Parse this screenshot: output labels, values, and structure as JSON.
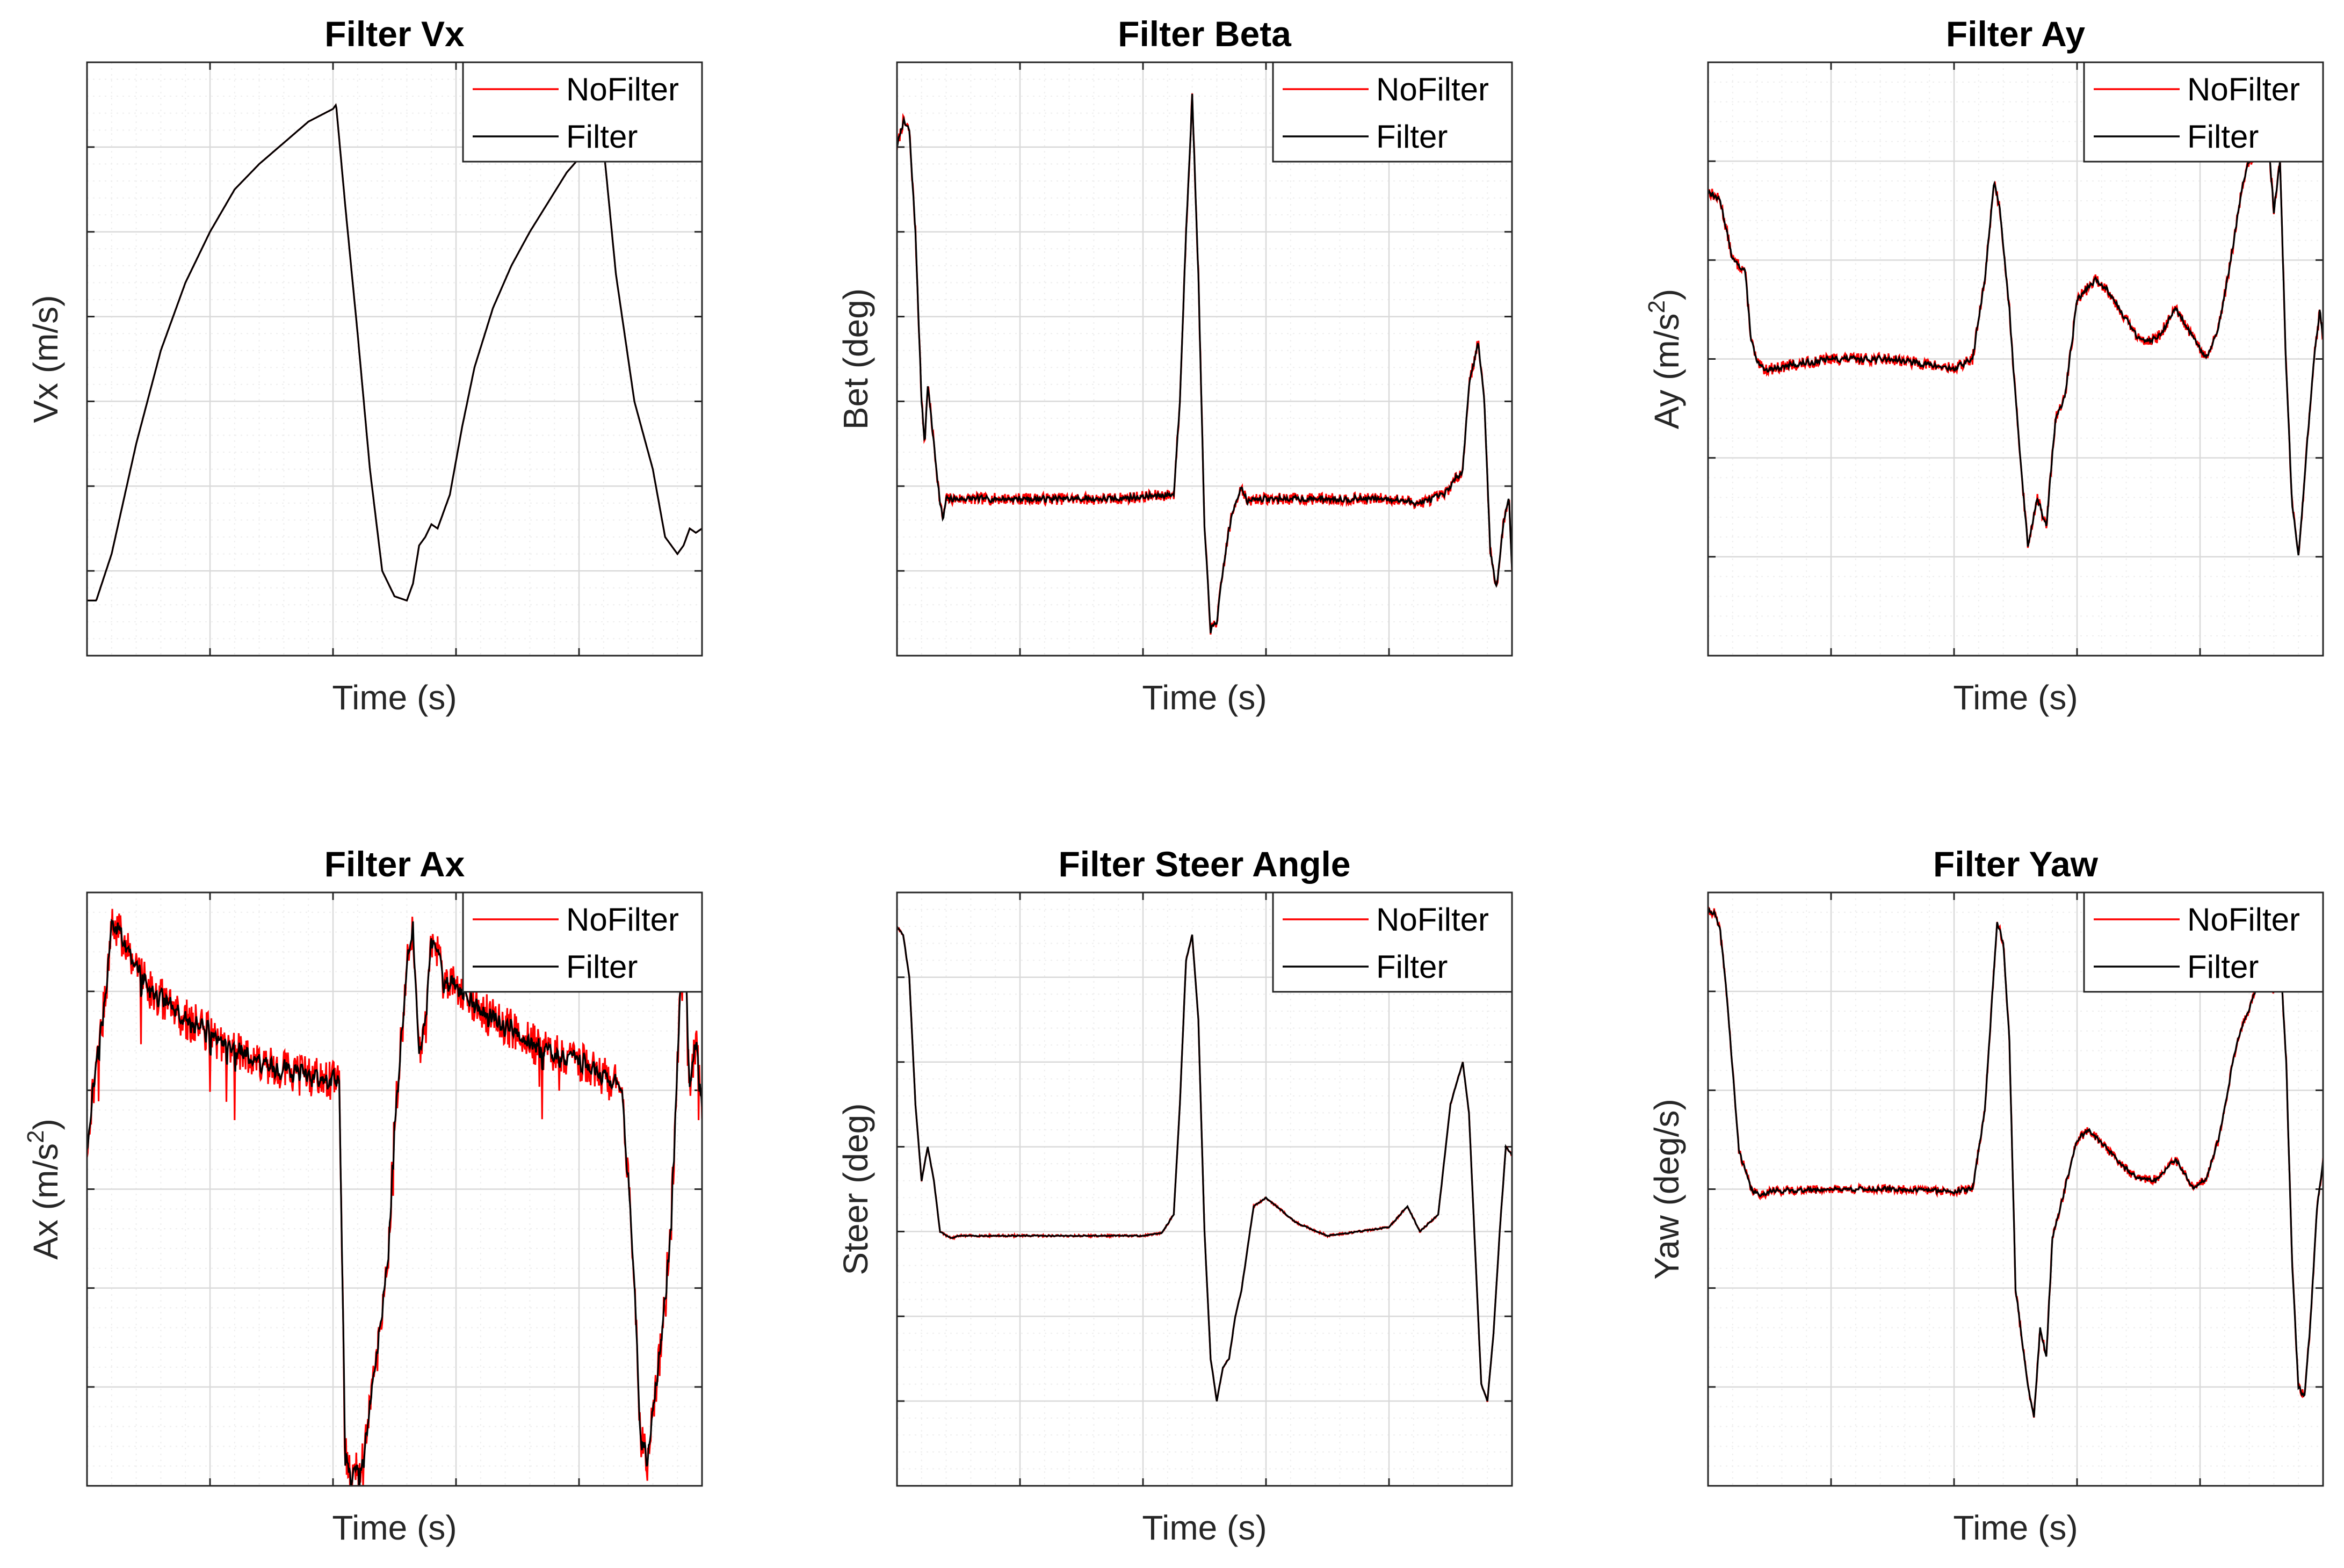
{
  "figure": {
    "rows": 2,
    "cols": 3
  },
  "colors": {
    "nofilter": "#ff0000",
    "filter": "#000000",
    "axis": "#262626",
    "grid_major": "#d9d9d9",
    "grid_minor": "#eeeeee"
  },
  "chart_data": [
    {
      "type": "line",
      "title": "Filter Vx",
      "xlabel": "Time (s)",
      "ylabel": "Vx (m/s)",
      "ylabel_sup": "",
      "ylabel_tail": "",
      "xlim": [
        0,
        10
      ],
      "ylim": [
        0,
        7
      ],
      "x_major": 5,
      "x_minor": 5,
      "y_major": 7,
      "y_minor": 5,
      "legend": {
        "location": "top-right",
        "entries": [
          "NoFilter",
          "Filter"
        ]
      },
      "noise": 0.0,
      "seed": 1,
      "x": [
        0,
        0.15,
        0.4,
        0.8,
        1.2,
        1.6,
        2,
        2.4,
        2.8,
        3.2,
        3.6,
        4,
        4.05,
        4.2,
        4.4,
        4.6,
        4.8,
        5,
        5.2,
        5.3,
        5.4,
        5.5,
        5.6,
        5.7,
        5.8,
        5.9,
        6,
        6.1,
        6.3,
        6.6,
        6.9,
        7.2,
        7.5,
        7.8,
        8.1,
        8.4,
        8.6,
        8.9,
        9.2,
        9.4,
        9.5,
        9.6,
        9.7,
        9.8,
        9.9,
        10
      ],
      "series": [
        {
          "name": "NoFilter",
          "values": [
            0.65,
            0.65,
            1.2,
            2.5,
            3.6,
            4.4,
            5.0,
            5.5,
            5.8,
            6.05,
            6.3,
            6.45,
            6.5,
            5.3,
            3.8,
            2.2,
            1.0,
            0.7,
            0.65,
            0.85,
            1.3,
            1.4,
            1.55,
            1.5,
            1.7,
            1.9,
            2.3,
            2.7,
            3.4,
            4.1,
            4.6,
            5.0,
            5.35,
            5.7,
            5.95,
            6.0,
            4.5,
            3.0,
            2.2,
            1.4,
            1.3,
            1.2,
            1.3,
            1.5,
            1.45,
            1.5
          ]
        },
        {
          "name": "Filter",
          "values": [
            0.65,
            0.65,
            1.2,
            2.5,
            3.6,
            4.4,
            5.0,
            5.5,
            5.8,
            6.05,
            6.3,
            6.45,
            6.5,
            5.3,
            3.8,
            2.2,
            1.0,
            0.7,
            0.65,
            0.85,
            1.3,
            1.4,
            1.55,
            1.5,
            1.7,
            1.9,
            2.3,
            2.7,
            3.4,
            4.1,
            4.6,
            5.0,
            5.35,
            5.7,
            5.95,
            6.0,
            4.5,
            3.0,
            2.2,
            1.4,
            1.3,
            1.2,
            1.3,
            1.5,
            1.45,
            1.5
          ]
        }
      ]
    },
    {
      "type": "line",
      "title": "Filter Beta",
      "xlabel": "Time (s)",
      "ylabel": "Bet (deg)",
      "ylabel_sup": "",
      "ylabel_tail": "",
      "xlim": [
        0,
        10
      ],
      "ylim": [
        0,
        7
      ],
      "x_major": 5,
      "x_minor": 5,
      "y_major": 7,
      "y_minor": 5,
      "legend": {
        "location": "top-right",
        "entries": [
          "NoFilter",
          "Filter"
        ]
      },
      "noise": 0.07,
      "seed": 7,
      "x": [
        0,
        0.1,
        0.2,
        0.3,
        0.4,
        0.45,
        0.5,
        0.6,
        0.7,
        0.75,
        0.8,
        1.0,
        2.0,
        3.0,
        3.5,
        4.5,
        4.6,
        4.7,
        4.8,
        4.9,
        5.0,
        5.1,
        5.2,
        5.3,
        5.4,
        5.5,
        5.6,
        5.7,
        5.8,
        6.0,
        6.5,
        7.0,
        7.5,
        8.0,
        8.5,
        8.9,
        9.2,
        9.3,
        9.45,
        9.55,
        9.65,
        9.75,
        9.85,
        9.95,
        10
      ],
      "series": [
        {
          "name": "NoFilter",
          "values": [
            6.0,
            6.3,
            6.2,
            5.0,
            3.0,
            2.5,
            3.2,
            2.5,
            1.8,
            1.6,
            1.85,
            1.85,
            1.85,
            1.85,
            1.85,
            1.9,
            3.0,
            5.0,
            6.6,
            4.5,
            1.5,
            0.3,
            0.4,
            1.0,
            1.5,
            1.8,
            2.0,
            1.8,
            1.85,
            1.85,
            1.85,
            1.85,
            1.85,
            1.85,
            1.8,
            1.9,
            2.2,
            3.2,
            3.7,
            3.0,
            1.2,
            0.8,
            1.5,
            1.9,
            1.0
          ]
        },
        {
          "name": "Filter",
          "values": [
            6.0,
            6.3,
            6.2,
            5.0,
            3.0,
            2.5,
            3.2,
            2.5,
            1.8,
            1.6,
            1.85,
            1.85,
            1.85,
            1.85,
            1.85,
            1.9,
            3.0,
            5.0,
            6.6,
            4.5,
            1.5,
            0.3,
            0.4,
            1.0,
            1.5,
            1.8,
            2.0,
            1.8,
            1.85,
            1.85,
            1.85,
            1.85,
            1.85,
            1.85,
            1.8,
            1.9,
            2.2,
            3.2,
            3.7,
            3.0,
            1.2,
            0.8,
            1.5,
            1.9,
            1.0
          ]
        }
      ]
    },
    {
      "type": "line",
      "title": "Filter Ay",
      "xlabel": "Time (s)",
      "ylabel": "Ay (m/s",
      "ylabel_sup": "2",
      "ylabel_tail": ")",
      "xlim": [
        0,
        10
      ],
      "ylim": [
        0,
        6
      ],
      "x_major": 5,
      "x_minor": 5,
      "y_major": 6,
      "y_minor": 5,
      "legend": {
        "location": "top-right",
        "entries": [
          "NoFilter",
          "Filter"
        ]
      },
      "noise": 0.06,
      "seed": 13,
      "x": [
        0,
        0.2,
        0.4,
        0.6,
        0.7,
        0.8,
        0.9,
        1.0,
        1.5,
        2.0,
        3.0,
        3.5,
        4.0,
        4.3,
        4.5,
        4.65,
        4.75,
        4.9,
        5.0,
        5.2,
        5.35,
        5.5,
        5.65,
        5.8,
        6.0,
        6.3,
        6.5,
        6.8,
        7.0,
        7.3,
        7.6,
        7.9,
        8.1,
        8.3,
        8.5,
        8.7,
        8.8,
        9.0,
        9.1,
        9.2,
        9.3,
        9.4,
        9.5,
        9.6,
        9.7,
        9.75,
        9.85,
        9.95,
        10
      ],
      "series": [
        {
          "name": "NoFilter",
          "values": [
            4.7,
            4.6,
            4.0,
            3.9,
            3.2,
            2.95,
            2.9,
            2.9,
            2.95,
            3.0,
            3.0,
            2.95,
            2.9,
            3.0,
            3.8,
            4.8,
            4.5,
            3.5,
            2.6,
            1.1,
            1.6,
            1.3,
            2.4,
            2.6,
            3.6,
            3.8,
            3.7,
            3.4,
            3.2,
            3.2,
            3.5,
            3.2,
            3.0,
            3.3,
            4.0,
            4.8,
            5.0,
            5.1,
            5.3,
            4.5,
            5.0,
            2.9,
            1.5,
            1.0,
            1.8,
            2.2,
            3.0,
            3.5,
            3.2
          ]
        },
        {
          "name": "Filter",
          "values": [
            4.7,
            4.6,
            4.0,
            3.9,
            3.2,
            2.95,
            2.9,
            2.9,
            2.95,
            3.0,
            3.0,
            2.95,
            2.9,
            3.0,
            3.8,
            4.8,
            4.5,
            3.5,
            2.6,
            1.1,
            1.6,
            1.3,
            2.4,
            2.6,
            3.6,
            3.8,
            3.7,
            3.4,
            3.2,
            3.2,
            3.5,
            3.2,
            3.0,
            3.3,
            4.0,
            4.8,
            5.0,
            5.1,
            5.3,
            4.5,
            5.0,
            2.9,
            1.5,
            1.0,
            1.8,
            2.2,
            3.0,
            3.5,
            3.2
          ]
        }
      ]
    },
    {
      "type": "line",
      "title": "Filter Ax",
      "xlabel": "Time (s)",
      "ylabel": "Ax (m/s",
      "ylabel_sup": "2",
      "ylabel_tail": ")",
      "xlim": [
        0,
        10
      ],
      "ylim": [
        0,
        6.3
      ],
      "x_major": 5,
      "x_minor": 5,
      "y_major": 6,
      "y_minor": 5,
      "legend": {
        "location": "top-right",
        "entries": [
          "NoFilter",
          "Filter"
        ]
      },
      "noise": 0.22,
      "seed": 21,
      "x": [
        0,
        0.15,
        0.3,
        0.4,
        0.6,
        0.8,
        1.0,
        1.5,
        2.0,
        2.5,
        3.0,
        3.5,
        4.0,
        4.1,
        4.2,
        4.3,
        4.5,
        4.7,
        4.9,
        5.0,
        5.2,
        5.3,
        5.4,
        5.5,
        5.6,
        5.7,
        5.8,
        6.0,
        6.5,
        7.0,
        7.5,
        8.0,
        8.5,
        8.7,
        8.9,
        9.0,
        9.1,
        9.2,
        9.3,
        9.5,
        9.6,
        9.7,
        9.8,
        9.9,
        10
      ],
      "series": [
        {
          "name": "NoFilter",
          "values": [
            3.6,
            4.5,
            5.2,
            6.0,
            5.8,
            5.5,
            5.3,
            5.0,
            4.8,
            4.6,
            4.45,
            4.35,
            4.3,
            4.25,
            0.4,
            0.1,
            0.3,
            1.3,
            2.5,
            3.8,
            5.5,
            6.0,
            4.5,
            5.0,
            5.8,
            5.7,
            5.3,
            5.3,
            5.0,
            4.8,
            4.6,
            4.5,
            4.3,
            4.2,
            2.2,
            0.5,
            0.3,
            0.8,
            1.3,
            2.8,
            4.5,
            6.0,
            4.3,
            4.7,
            4.0
          ]
        },
        {
          "name": "Filter",
          "values": [
            3.6,
            4.5,
            5.2,
            6.0,
            5.8,
            5.5,
            5.3,
            5.0,
            4.8,
            4.6,
            4.45,
            4.35,
            4.3,
            4.25,
            0.4,
            0.1,
            0.3,
            1.3,
            2.5,
            3.8,
            5.5,
            6.0,
            4.5,
            5.0,
            5.8,
            5.7,
            5.3,
            5.3,
            5.0,
            4.8,
            4.6,
            4.5,
            4.3,
            4.2,
            2.2,
            0.5,
            0.3,
            0.8,
            1.3,
            2.8,
            4.5,
            6.0,
            4.3,
            4.7,
            4.0
          ]
        }
      ]
    },
    {
      "type": "line",
      "title": "Filter Steer Angle",
      "xlabel": "Time (s)",
      "ylabel": "Steer (deg)",
      "ylabel_sup": "",
      "ylabel_tail": "",
      "xlim": [
        0,
        10
      ],
      "ylim": [
        0,
        7
      ],
      "x_major": 5,
      "x_minor": 5,
      "y_major": 7,
      "y_minor": 5,
      "legend": {
        "location": "top-right",
        "entries": [
          "NoFilter",
          "Filter"
        ]
      },
      "noise": 0.012,
      "seed": 31,
      "x": [
        0,
        0.1,
        0.2,
        0.3,
        0.4,
        0.5,
        0.6,
        0.7,
        0.8,
        0.9,
        1.0,
        2.0,
        3.0,
        4.0,
        4.3,
        4.5,
        4.6,
        4.7,
        4.8,
        4.9,
        5.0,
        5.1,
        5.2,
        5.3,
        5.4,
        5.5,
        5.6,
        5.8,
        6.0,
        6.5,
        7.0,
        7.5,
        8.0,
        8.3,
        8.5,
        8.8,
        9.0,
        9.2,
        9.3,
        9.4,
        9.5,
        9.6,
        9.7,
        9.8,
        9.9,
        10
      ],
      "series": [
        {
          "name": "NoFilter",
          "values": [
            6.6,
            6.5,
            6.0,
            4.5,
            3.6,
            4.0,
            3.6,
            3.0,
            2.95,
            2.92,
            2.95,
            2.95,
            2.95,
            2.95,
            2.98,
            3.2,
            4.5,
            6.2,
            6.5,
            5.5,
            3.0,
            1.5,
            1.0,
            1.4,
            1.5,
            2.0,
            2.3,
            3.3,
            3.4,
            3.1,
            2.95,
            3.0,
            3.05,
            3.3,
            3.0,
            3.2,
            4.5,
            5.0,
            4.4,
            2.8,
            1.2,
            1.0,
            1.8,
            3.0,
            4.0,
            3.9
          ]
        },
        {
          "name": "Filter",
          "values": [
            6.6,
            6.5,
            6.0,
            4.5,
            3.6,
            4.0,
            3.6,
            3.0,
            2.95,
            2.92,
            2.95,
            2.95,
            2.95,
            2.95,
            2.98,
            3.2,
            4.5,
            6.2,
            6.5,
            5.5,
            3.0,
            1.5,
            1.0,
            1.4,
            1.5,
            2.0,
            2.3,
            3.3,
            3.4,
            3.1,
            2.95,
            3.0,
            3.05,
            3.3,
            3.0,
            3.2,
            4.5,
            5.0,
            4.4,
            2.8,
            1.2,
            1.0,
            1.8,
            3.0,
            4.0,
            3.9
          ]
        }
      ]
    },
    {
      "type": "line",
      "title": "Filter Yaw",
      "xlabel": "Time (s)",
      "ylabel": "Yaw (deg/s)",
      "ylabel_sup": "",
      "ylabel_tail": "",
      "xlim": [
        0,
        10
      ],
      "ylim": [
        0,
        6
      ],
      "x_major": 5,
      "x_minor": 5,
      "y_major": 6,
      "y_minor": 5,
      "legend": {
        "location": "top-right",
        "entries": [
          "NoFilter",
          "Filter"
        ]
      },
      "noise": 0.045,
      "seed": 41,
      "x": [
        0,
        0.1,
        0.2,
        0.3,
        0.4,
        0.5,
        0.6,
        0.7,
        0.8,
        0.9,
        1.0,
        2.0,
        3.0,
        4.0,
        4.3,
        4.5,
        4.7,
        4.8,
        4.9,
        5.0,
        5.2,
        5.3,
        5.4,
        5.5,
        5.6,
        5.8,
        6.0,
        6.2,
        6.5,
        6.8,
        7.0,
        7.3,
        7.6,
        7.9,
        8.1,
        8.3,
        8.6,
        8.9,
        9.1,
        9.2,
        9.3,
        9.4,
        9.5,
        9.6,
        9.7,
        9.8,
        9.9,
        10
      ],
      "series": [
        {
          "name": "NoFilter",
          "values": [
            5.8,
            5.8,
            5.6,
            5.0,
            4.2,
            3.4,
            3.2,
            3.0,
            2.95,
            2.95,
            2.98,
            3.0,
            3.0,
            2.98,
            3.0,
            3.8,
            5.7,
            5.5,
            4.5,
            2.0,
            1.0,
            0.7,
            1.6,
            1.3,
            2.5,
            3.0,
            3.5,
            3.6,
            3.4,
            3.2,
            3.1,
            3.1,
            3.3,
            3.0,
            3.1,
            3.5,
            4.5,
            5.0,
            5.2,
            5.0,
            5.4,
            4.3,
            2.2,
            1.0,
            0.9,
            1.7,
            2.8,
            3.3
          ]
        },
        {
          "name": "Filter",
          "values": [
            5.8,
            5.8,
            5.6,
            5.0,
            4.2,
            3.4,
            3.2,
            3.0,
            2.95,
            2.95,
            2.98,
            3.0,
            3.0,
            2.98,
            3.0,
            3.8,
            5.7,
            5.5,
            4.5,
            2.0,
            1.0,
            0.7,
            1.6,
            1.3,
            2.5,
            3.0,
            3.5,
            3.6,
            3.4,
            3.2,
            3.1,
            3.1,
            3.3,
            3.0,
            3.1,
            3.5,
            4.5,
            5.0,
            5.2,
            5.0,
            5.4,
            4.3,
            2.2,
            1.0,
            0.9,
            1.7,
            2.8,
            3.3
          ]
        }
      ]
    }
  ]
}
